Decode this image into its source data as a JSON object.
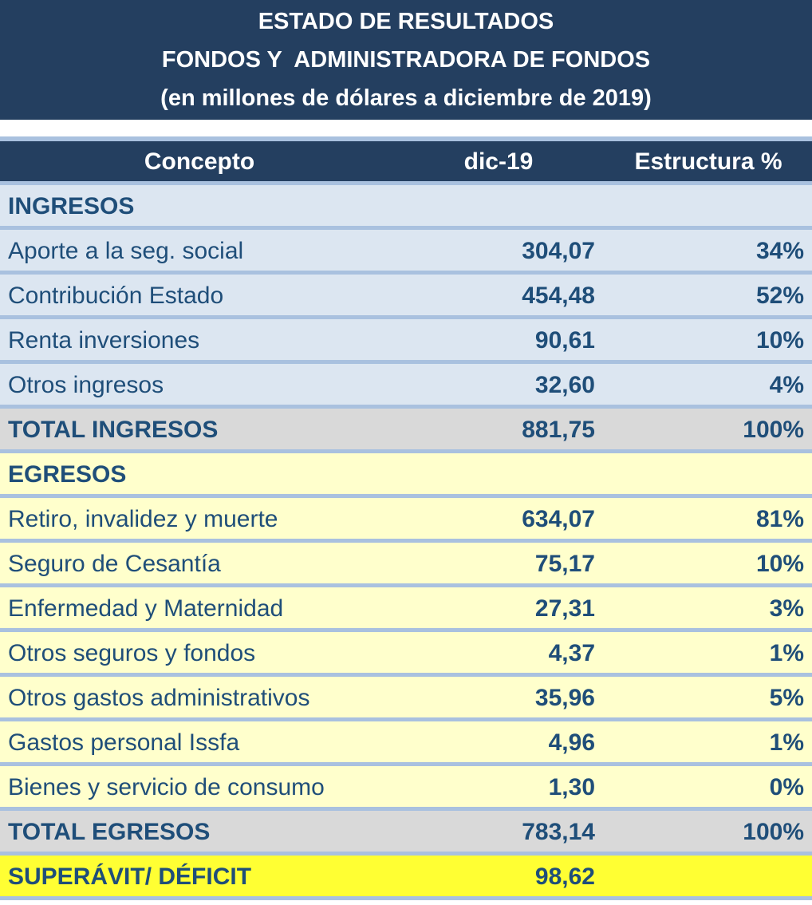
{
  "title": {
    "line1": "ESTADO DE RESULTADOS",
    "line2": "FONDOS Y  ADMINISTRADORA DE FONDOS",
    "line3": "(en millones de dólares a diciembre de 2019)"
  },
  "columns": [
    "Concepto",
    "dic-19",
    "Estructura %"
  ],
  "rows": [
    {
      "concept": "INGRESOS",
      "value": "",
      "pct": "",
      "style": "section-income"
    },
    {
      "concept": "Aporte a la seg. social",
      "value": "304,07",
      "pct": "34%",
      "style": "income"
    },
    {
      "concept": "Contribución Estado",
      "value": "454,48",
      "pct": "52%",
      "style": "income"
    },
    {
      "concept": "Renta inversiones",
      "value": "90,61",
      "pct": "10%",
      "style": "income"
    },
    {
      "concept": "Otros ingresos",
      "value": "32,60",
      "pct": "4%",
      "style": "income"
    },
    {
      "concept": "TOTAL INGRESOS",
      "value": "881,75",
      "pct": "100%",
      "style": "total"
    },
    {
      "concept": "EGRESOS",
      "value": "",
      "pct": "",
      "style": "section-expense"
    },
    {
      "concept": "Retiro, invalidez y muerte",
      "value": "634,07",
      "pct": "81%",
      "style": "expense"
    },
    {
      "concept": "Seguro de Cesantía",
      "value": "75,17",
      "pct": "10%",
      "style": "expense"
    },
    {
      "concept": "Enfermedad y Maternidad",
      "value": "27,31",
      "pct": "3%",
      "style": "expense"
    },
    {
      "concept": "Otros seguros y fondos",
      "value": "4,37",
      "pct": "1%",
      "style": "expense"
    },
    {
      "concept": "Otros gastos administrativos",
      "value": "35,96",
      "pct": "5%",
      "style": "expense"
    },
    {
      "concept": "Gastos personal Issfa",
      "value": "4,96",
      "pct": "1%",
      "style": "expense"
    },
    {
      "concept": "Bienes y servicio de consumo",
      "value": "1,30",
      "pct": "0%",
      "style": "expense"
    },
    {
      "concept": "TOTAL EGRESOS",
      "value": "783,14",
      "pct": "100%",
      "style": "total"
    },
    {
      "concept": "SUPERÁVIT/ DÉFICIT",
      "value": "98,62",
      "pct": "",
      "style": "result"
    }
  ],
  "colors": {
    "header_bg": "#243f60",
    "income_bg": "#dce6f1",
    "total_bg": "#d9d9d9",
    "expense_bg": "#ffffcc",
    "result_bg": "#ffff33",
    "text": "#1f4e79"
  }
}
